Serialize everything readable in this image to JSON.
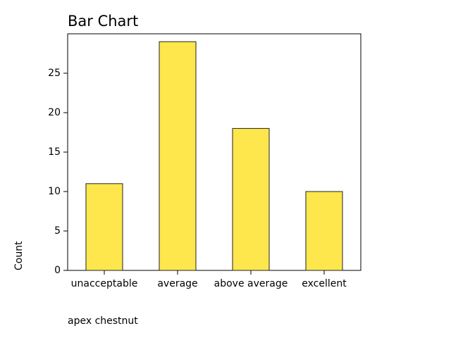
{
  "chart_data": {
    "type": "bar",
    "title": "Bar Chart",
    "categories": [
      "unacceptable",
      "average",
      "above average",
      "excellent"
    ],
    "values": [
      11,
      29,
      18,
      10
    ],
    "color": "#fde74c",
    "xlabel": "apex chestnut",
    "ylabel": "Count",
    "ylim": [
      0,
      30
    ],
    "yticks": [
      0,
      5,
      10,
      15,
      20,
      25
    ]
  }
}
